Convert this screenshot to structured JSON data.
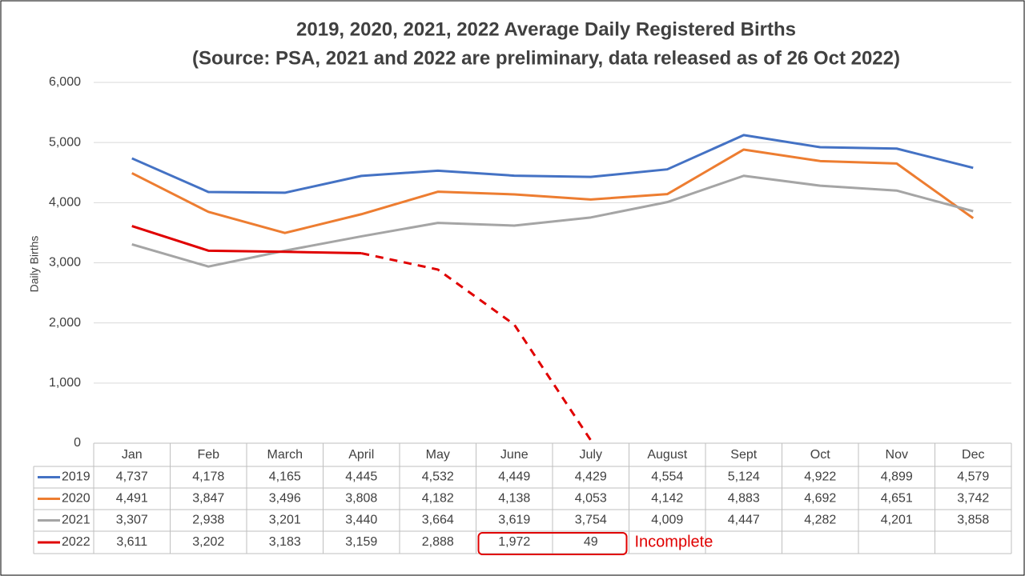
{
  "chart_data": {
    "type": "line",
    "title": "2019, 2020, 2021, 2022 Average Daily Registered Births",
    "subtitle": "(Source: PSA, 2021 and 2022 are preliminary, data released as of 26 Oct 2022)",
    "y_label": "Daily Births",
    "categories": [
      "Jan",
      "Feb",
      "March",
      "April",
      "May",
      "June",
      "July",
      "August",
      "Sept",
      "Oct",
      "Nov",
      "Dec"
    ],
    "series": [
      {
        "name": "2019",
        "color": "#4472c4",
        "values": [
          4737,
          4178,
          4165,
          4445,
          4532,
          4449,
          4429,
          4554,
          5124,
          4922,
          4899,
          4579
        ],
        "value_labels": [
          "4,737",
          "4,178",
          "4,165",
          "4,445",
          "4,532",
          "4,449",
          "4,429",
          "4,554",
          "5,124",
          "4,922",
          "4,899",
          "4,579"
        ]
      },
      {
        "name": "2020",
        "color": "#ed7d31",
        "values": [
          4491,
          3847,
          3496,
          3808,
          4182,
          4138,
          4053,
          4142,
          4883,
          4692,
          4651,
          3742
        ],
        "value_labels": [
          "4,491",
          "3,847",
          "3,496",
          "3,808",
          "4,182",
          "4,138",
          "4,053",
          "4,142",
          "4,883",
          "4,692",
          "4,651",
          "3,742"
        ]
      },
      {
        "name": "2021",
        "color": "#a5a5a5",
        "values": [
          3307,
          2938,
          3201,
          3440,
          3664,
          3619,
          3754,
          4009,
          4447,
          4282,
          4201,
          3858
        ],
        "value_labels": [
          "3,307",
          "2,938",
          "3,201",
          "3,440",
          "3,664",
          "3,619",
          "3,754",
          "4,009",
          "4,447",
          "4,282",
          "4,201",
          "3,858"
        ]
      },
      {
        "name": "2022",
        "color": "#e00000",
        "dashed_from": 3,
        "values": [
          3611,
          3202,
          3183,
          3159,
          2888,
          1972,
          49,
          null,
          null,
          null,
          null,
          null
        ],
        "value_labels": [
          "3,611",
          "3,202",
          "3,183",
          "3,159",
          "2,888",
          "1,972",
          "49",
          null,
          null,
          null,
          null,
          null
        ]
      }
    ],
    "annotation": "Incomplete",
    "ylim": [
      0,
      6000
    ],
    "yticks": [
      0,
      {
        "value": 1000,
        "label": "1,000"
      },
      {
        "value": 2000,
        "label": "2,000"
      },
      {
        "value": 3000,
        "label": "3,000"
      },
      {
        "value": 4000,
        "label": "4,000"
      },
      {
        "value": 5000,
        "label": "5,000"
      },
      {
        "value": 6000,
        "label": "6,000"
      }
    ],
    "grid": true
  }
}
